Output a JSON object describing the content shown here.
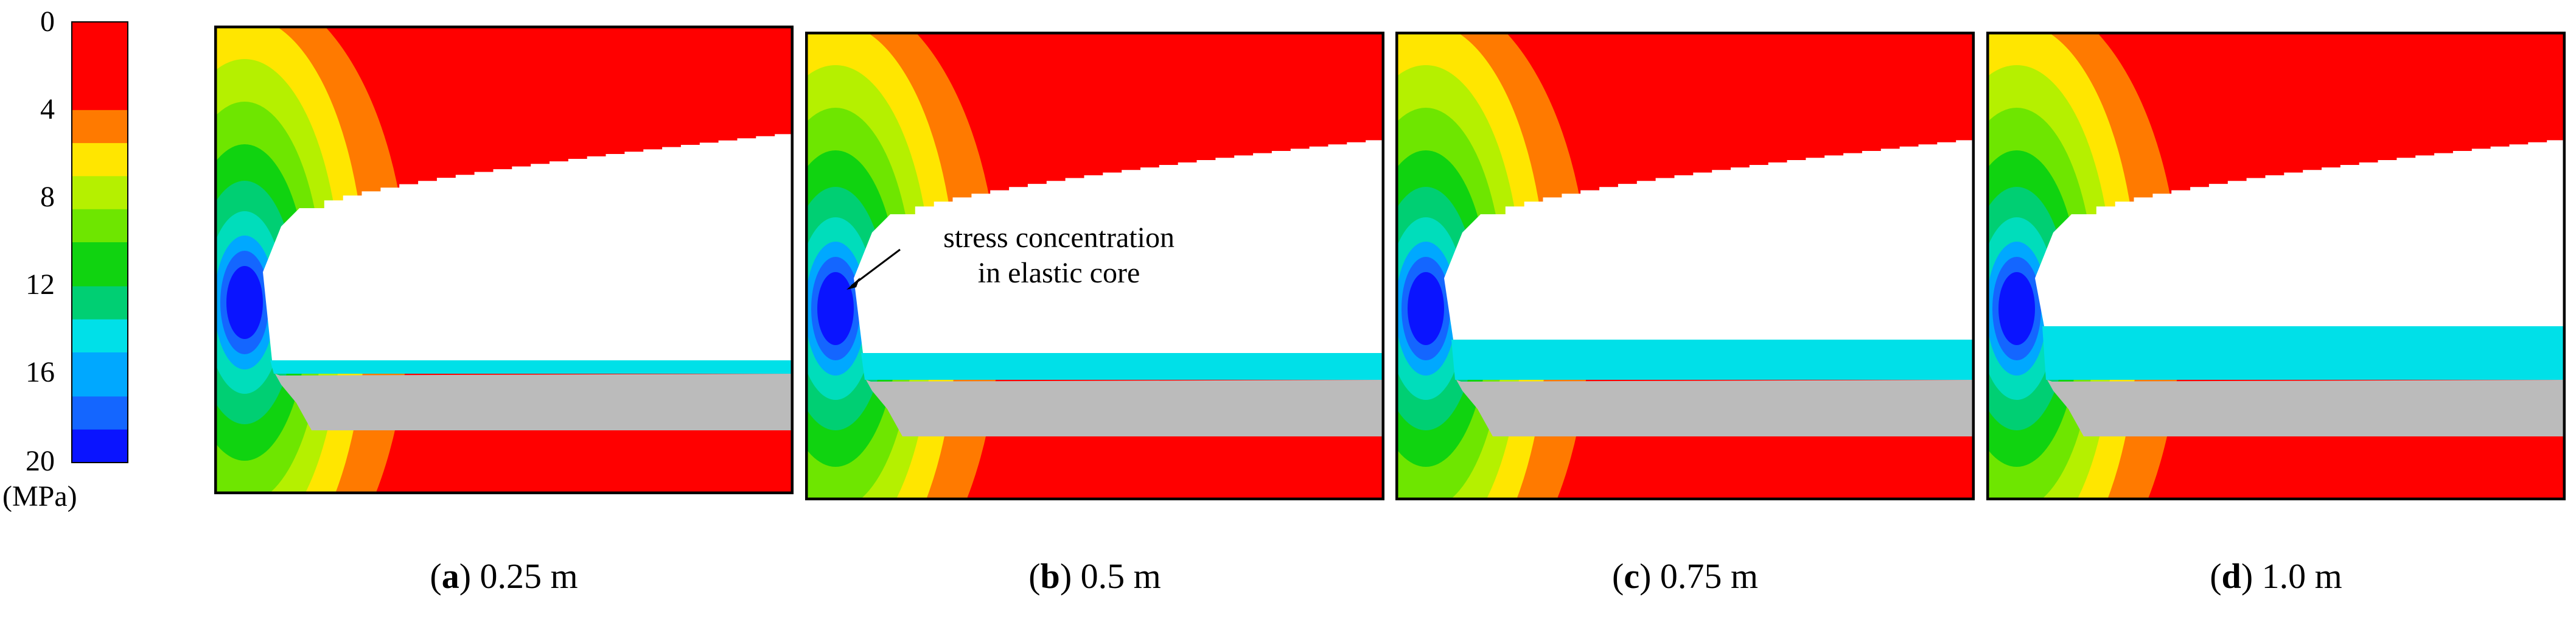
{
  "colors": {
    "red": "#ff0000",
    "orange": "#ff7a00",
    "yellow": "#ffe600",
    "yellow_green": "#b5f000",
    "light_green": "#6ee600",
    "green": "#10d310",
    "teal_green": "#00cf73",
    "mint": "#00ddbb",
    "cyan": "#00e0e8",
    "light_blue": "#00a8ff",
    "blue": "#1466ff",
    "dark_blue": "#0a14ff",
    "grey": "#bbbbbb",
    "white": "#ffffff",
    "black": "#000000"
  },
  "legend": {
    "ticks": [
      "0",
      "4",
      "8",
      "12",
      "16",
      "20"
    ],
    "unit": "(MPa)",
    "levels": [
      {
        "value_top": 0,
        "value_bottom": 2,
        "color": "#ff0000"
      },
      {
        "value_top": 2,
        "value_bottom": 4,
        "color": "#ff0000"
      },
      {
        "value_top": 4,
        "value_bottom": 5.5,
        "color": "#ff7a00"
      },
      {
        "value_top": 5.5,
        "value_bottom": 7,
        "color": "#ffe600"
      },
      {
        "value_top": 7,
        "value_bottom": 8.5,
        "color": "#b5f000"
      },
      {
        "value_top": 8.5,
        "value_bottom": 10,
        "color": "#6ee600"
      },
      {
        "value_top": 10,
        "value_bottom": 12,
        "color": "#10d310"
      },
      {
        "value_top": 12,
        "value_bottom": 13.5,
        "color": "#00cf73"
      },
      {
        "value_top": 13.5,
        "value_bottom": 15,
        "color": "#00e0e8"
      },
      {
        "value_top": 15,
        "value_bottom": 17,
        "color": "#00a8ff"
      },
      {
        "value_top": 17,
        "value_bottom": 18.5,
        "color": "#1466ff"
      },
      {
        "value_top": 18.5,
        "value_bottom": 20,
        "color": "#0a14ff"
      }
    ]
  },
  "panels": [
    {
      "letter": "a",
      "paren_open": "(",
      "paren_close": ")",
      "value": "0.25 m",
      "cyan_thickness": 0.25
    },
    {
      "letter": "b",
      "paren_open": "(",
      "paren_close": ")",
      "value": "0.5 m",
      "cyan_thickness": 0.5
    },
    {
      "letter": "c",
      "paren_open": "(",
      "paren_close": ")",
      "value": "0.75 m",
      "cyan_thickness": 0.75
    },
    {
      "letter": "d",
      "paren_open": "(",
      "paren_close": ")",
      "value": "1.0 m",
      "cyan_thickness": 1.0
    }
  ],
  "annotation": {
    "line1": "stress concentration",
    "line2": "in elastic core"
  }
}
